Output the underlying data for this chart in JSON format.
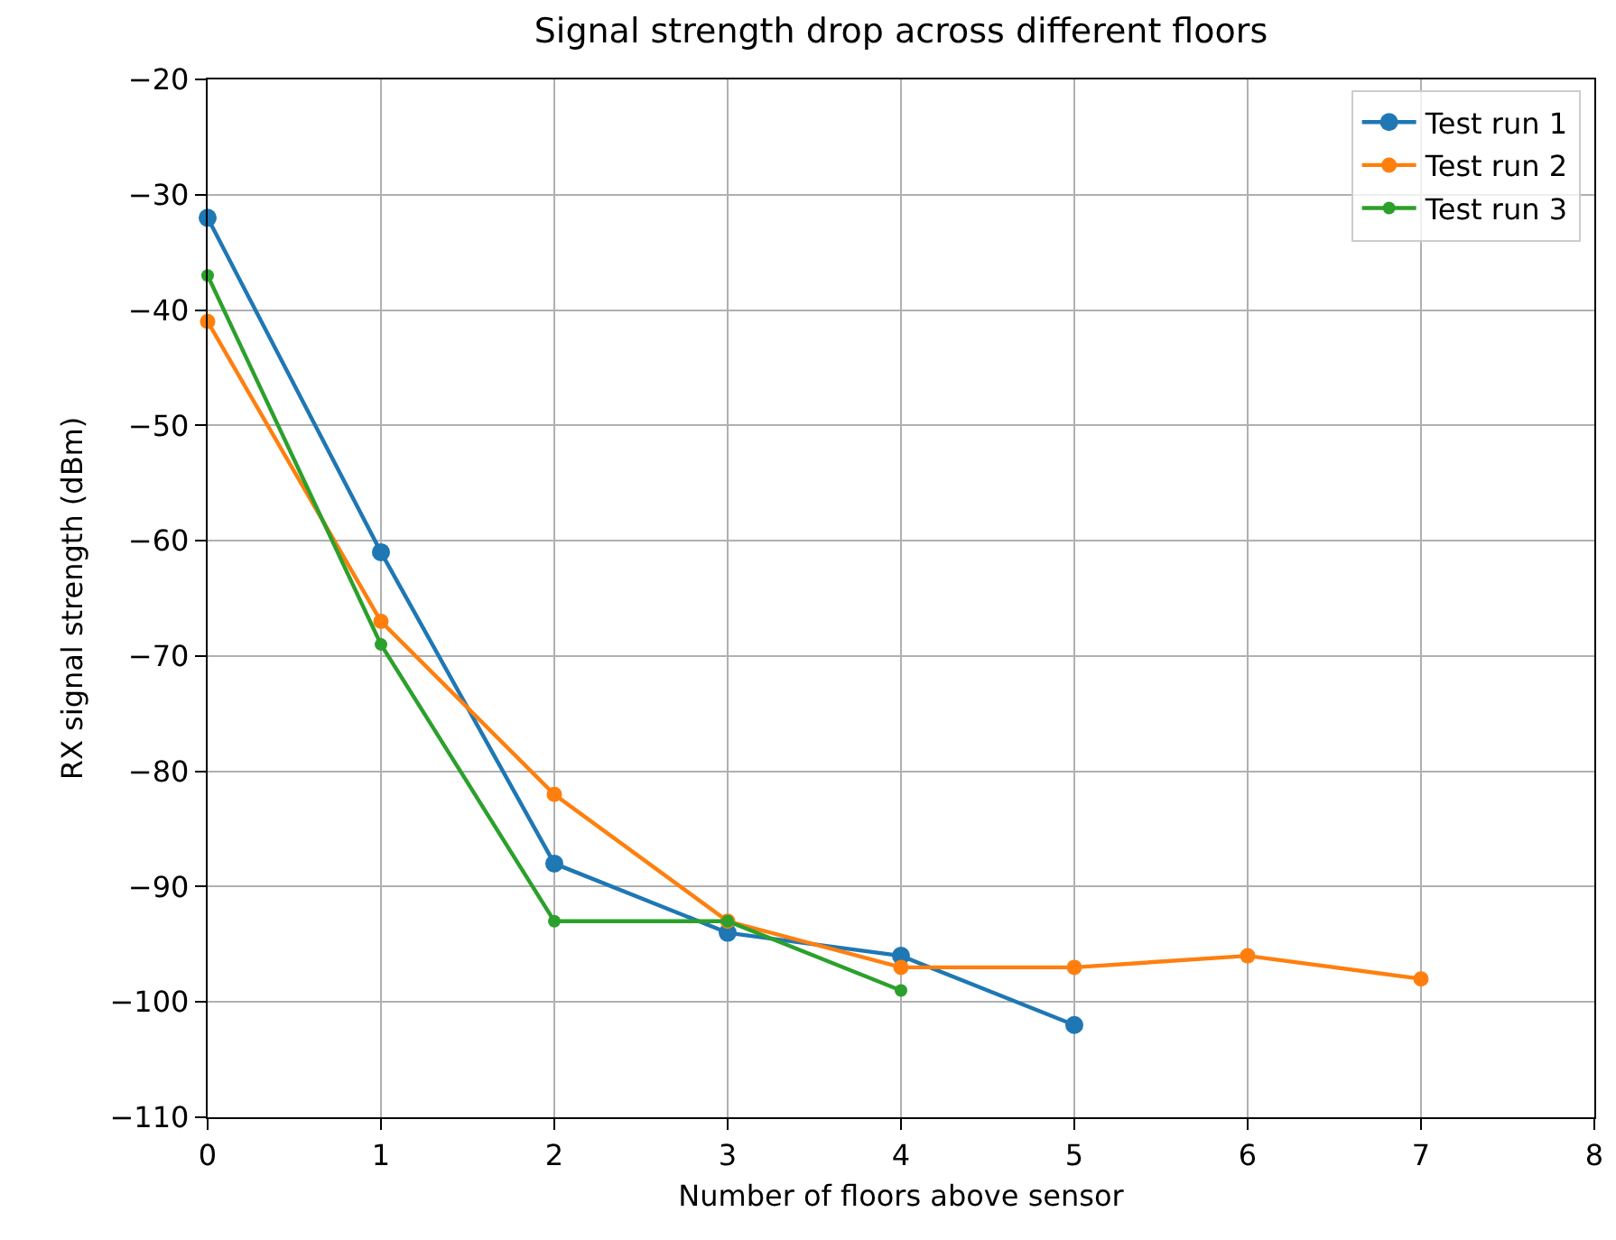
{
  "chart_data": {
    "type": "line",
    "title": "Signal strength drop across different floors",
    "xlabel": "Number of floors above sensor",
    "ylabel": "RX signal strength (dBm)",
    "series": [
      {
        "name": "Test run 1",
        "color": "#1f77b4",
        "x": [
          0,
          1,
          2,
          3,
          4,
          5
        ],
        "values": [
          -32,
          -61,
          -88,
          -94,
          -96,
          -102
        ]
      },
      {
        "name": "Test run 2",
        "color": "#ff7f0e",
        "x": [
          0,
          1,
          2,
          3,
          4,
          5,
          6,
          7
        ],
        "values": [
          -41,
          -67,
          -82,
          -93,
          -97,
          -97,
          -96,
          -98
        ]
      },
      {
        "name": "Test run 3",
        "color": "#2ca02c",
        "x": [
          0,
          1,
          2,
          3,
          4
        ],
        "values": [
          -37,
          -69,
          -93,
          -93,
          -99
        ]
      }
    ],
    "xlim": [
      0,
      8
    ],
    "xticks": [
      0,
      1,
      2,
      3,
      4,
      5,
      6,
      7,
      8
    ],
    "ylim": [
      -110,
      -20
    ],
    "yticks": [
      -110,
      -100,
      -90,
      -80,
      -70,
      -60,
      -50,
      -40,
      -30,
      -20
    ],
    "grid": true,
    "legend": "top right",
    "marker": "circle",
    "line_style": "solid"
  }
}
